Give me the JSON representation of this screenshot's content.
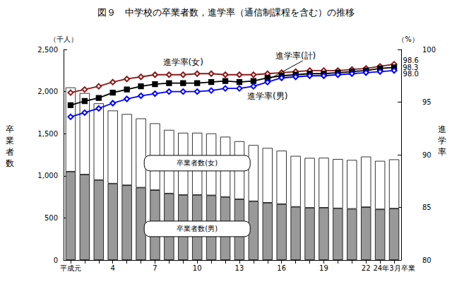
{
  "chart_data": {
    "type": "bar",
    "title": "図９　中学校の卒業者数，進学率（通信制課程を含む）の推移",
    "y_label": "卒業者数",
    "y_unit": "（千人）",
    "y2_label": "進学率",
    "y2_unit": "（%）",
    "categories": [
      "平成元",
      null,
      null,
      "4",
      null,
      null,
      "7",
      null,
      null,
      "10",
      null,
      null,
      "13",
      null,
      null,
      "16",
      null,
      null,
      "19",
      null,
      null,
      "22",
      null,
      "24年3月卒業"
    ],
    "ylim": [
      0,
      2500
    ],
    "yticks": [
      0,
      500,
      1000,
      1500,
      2000,
      2500
    ],
    "y2lim": [
      80,
      100
    ],
    "y2ticks": [
      80,
      85,
      90,
      95,
      100
    ],
    "stacked": true,
    "grid": false,
    "series": [
      {
        "name": "卒業者数(男)",
        "type": "bar",
        "color": "#999999",
        "values": [
          1050,
          1015,
          950,
          908,
          888,
          860,
          830,
          790,
          773,
          773,
          768,
          749,
          722,
          698,
          680,
          664,
          632,
          620,
          621,
          614,
          608,
          628,
          602,
          611
        ]
      },
      {
        "name": "卒業者数(女)",
        "type": "bar",
        "color": "#ffffff",
        "values": [
          999,
          967,
          910,
          867,
          845,
          821,
          793,
          755,
          738,
          738,
          735,
          715,
          688,
          667,
          650,
          634,
          604,
          592,
          593,
          585,
          580,
          600,
          575,
          584
        ]
      },
      {
        "name": "進学率(女)",
        "type": "line",
        "axis": "y2",
        "color": "#8b1a1a",
        "marker": "diamond",
        "values": [
          95.9,
          96.2,
          96.5,
          96.9,
          97.2,
          97.4,
          97.6,
          97.6,
          97.6,
          97.7,
          97.7,
          97.6,
          97.6,
          97.6,
          97.7,
          97.8,
          97.9,
          98.0,
          98.0,
          98.0,
          98.1,
          98.2,
          98.4,
          98.6
        ],
        "value_labels": [
          null,
          null,
          null,
          null,
          null,
          null,
          null,
          null,
          null,
          null,
          null,
          null,
          null,
          null,
          null,
          null,
          null,
          null,
          null,
          null,
          null,
          null,
          null,
          "98.6"
        ]
      },
      {
        "name": "進学率(計)",
        "type": "line",
        "axis": "y2",
        "color": "#000000",
        "marker": "square",
        "values": [
          94.7,
          95.1,
          95.4,
          95.9,
          96.2,
          96.5,
          96.7,
          96.8,
          96.8,
          96.8,
          96.9,
          97.0,
          96.9,
          97.0,
          97.3,
          97.5,
          97.6,
          97.7,
          97.7,
          97.8,
          97.9,
          98.0,
          98.2,
          98.3
        ],
        "value_labels": [
          null,
          null,
          null,
          null,
          null,
          null,
          null,
          null,
          null,
          null,
          null,
          null,
          null,
          null,
          null,
          null,
          null,
          null,
          null,
          null,
          null,
          null,
          null,
          "98.3"
        ]
      },
      {
        "name": "進学率(男)",
        "type": "line",
        "axis": "y2",
        "color": "#0000ff",
        "marker": "diamond",
        "values": [
          93.6,
          94.0,
          94.4,
          94.9,
          95.3,
          95.6,
          95.8,
          96.0,
          96.0,
          96.0,
          96.1,
          96.3,
          96.3,
          96.5,
          96.9,
          97.3,
          97.4,
          97.5,
          97.5,
          97.6,
          97.7,
          97.8,
          97.9,
          98.0
        ],
        "value_labels": [
          null,
          null,
          null,
          null,
          null,
          null,
          null,
          null,
          null,
          null,
          null,
          null,
          null,
          null,
          null,
          null,
          null,
          null,
          null,
          null,
          null,
          null,
          null,
          "98.0"
        ]
      }
    ]
  }
}
